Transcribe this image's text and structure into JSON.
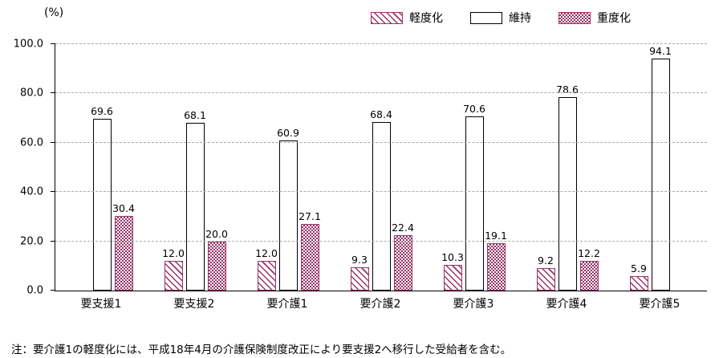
{
  "chart_data": {
    "type": "bar",
    "title": "",
    "unit_label": "(%)",
    "categories": [
      "要支援1",
      "要支援2",
      "要介護1",
      "要介護2",
      "要介護3",
      "要介護4",
      "要介護5"
    ],
    "series": [
      {
        "name": "軽度化",
        "pattern": "diagonal-hatch",
        "values": [
          null,
          12.0,
          12.0,
          9.3,
          10.3,
          9.2,
          5.9
        ]
      },
      {
        "name": "維持",
        "pattern": "white",
        "values": [
          69.6,
          68.1,
          60.9,
          68.4,
          70.6,
          78.6,
          94.1
        ]
      },
      {
        "name": "重度化",
        "pattern": "dense-checker",
        "values": [
          30.4,
          20.0,
          27.1,
          22.4,
          19.1,
          12.2,
          null
        ]
      }
    ],
    "ylim": [
      0,
      100
    ],
    "yticks": [
      0,
      20,
      40,
      60,
      80,
      100
    ],
    "ytick_labels": [
      "0.0",
      "20.0",
      "40.0",
      "60.0",
      "80.0",
      "100.0"
    ],
    "grid": "horizontal-dashed",
    "legend_position": "top"
  },
  "note": "注：要介護1の軽度化には、平成18年4月の介護保険制度改正により要支援2へ移行した受給者を含む。",
  "colors": {
    "series_accent": "#993366",
    "grid": "#a9a9a9",
    "axis": "#000000",
    "background": "#ffffff"
  }
}
